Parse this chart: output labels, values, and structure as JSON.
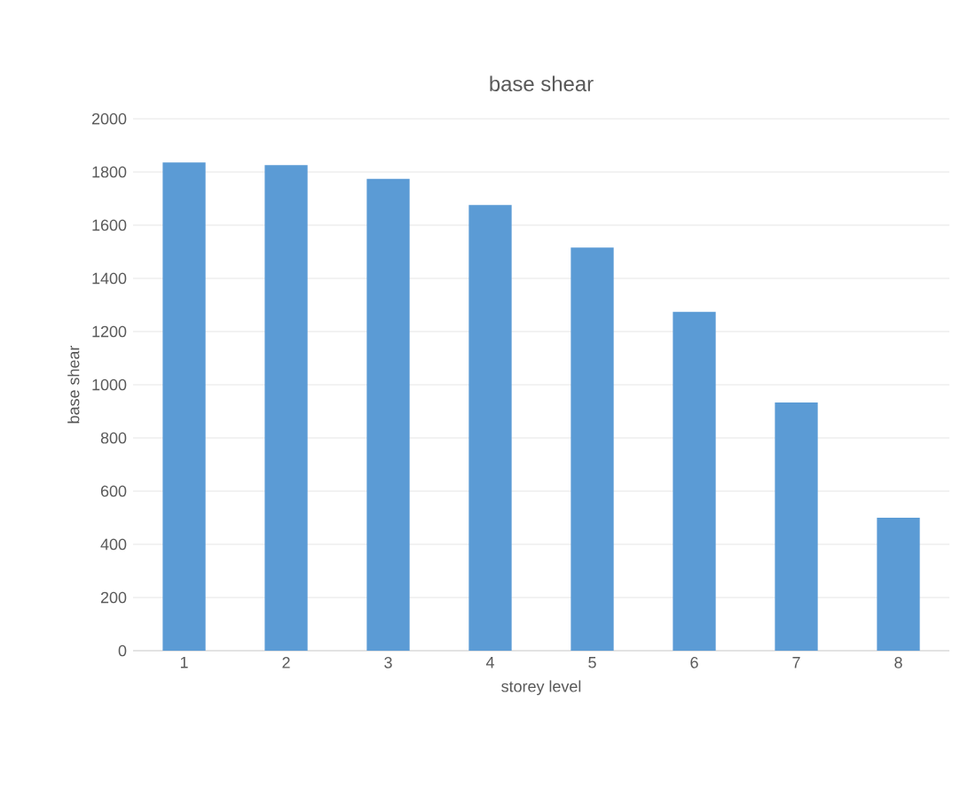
{
  "chart_data": {
    "type": "bar",
    "title": "base shear",
    "xlabel": "storey level",
    "ylabel": "base shear",
    "categories": [
      "1",
      "2",
      "3",
      "4",
      "5",
      "6",
      "7",
      "8"
    ],
    "values": [
      1836,
      1826,
      1774,
      1676,
      1516,
      1274,
      933,
      500
    ],
    "color": "#5b9bd5",
    "ylim": [
      0,
      2000
    ],
    "yticks": [
      0,
      200,
      400,
      600,
      800,
      1000,
      1200,
      1400,
      1600,
      1800,
      2000
    ],
    "grid": "y"
  }
}
